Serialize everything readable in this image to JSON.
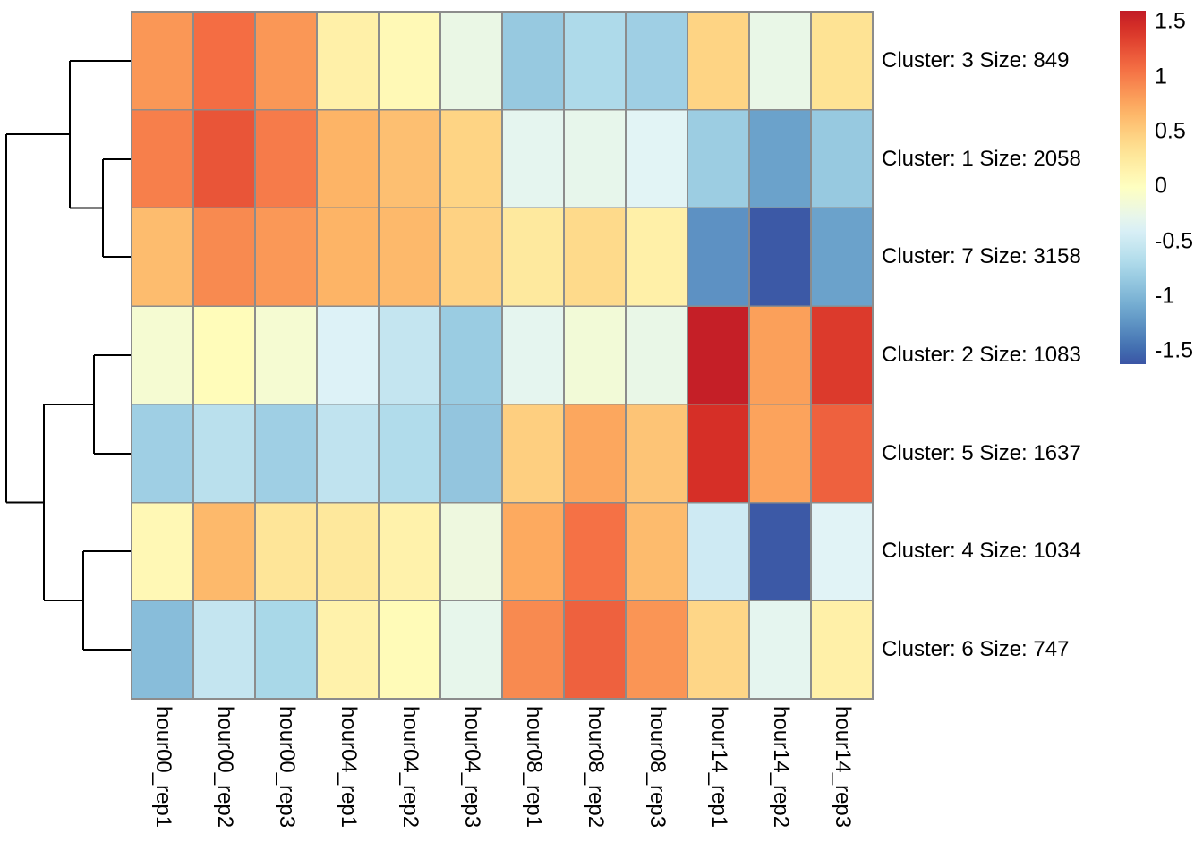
{
  "figure": {
    "background": "#ffffff",
    "grid_line_color": "#8C8C8C",
    "dendrogram_line_color": "#000000",
    "text_color": "#000000"
  },
  "chart_data": {
    "type": "heatmap",
    "title": "",
    "xlabel": "",
    "ylabel": "",
    "grid": true,
    "legend_position": "right",
    "columns": [
      "hour00_rep1",
      "hour00_rep2",
      "hour00_rep3",
      "hour04_rep1",
      "hour04_rep2",
      "hour04_rep3",
      "hour08_rep1",
      "hour08_rep2",
      "hour08_rep3",
      "hour14_rep1",
      "hour14_rep2",
      "hour14_rep3"
    ],
    "rows": [
      {
        "label": "Cluster: 3 Size: 849",
        "cluster": 3,
        "size": 849,
        "values": [
          0.85,
          1.08,
          0.85,
          0.18,
          0.07,
          -0.24,
          -0.85,
          -0.7,
          -0.8,
          0.45,
          -0.25,
          0.33
        ]
      },
      {
        "label": "Cluster: 1 Size: 2058",
        "cluster": 1,
        "size": 2058,
        "values": [
          0.98,
          1.22,
          1.0,
          0.68,
          0.6,
          0.45,
          -0.3,
          -0.28,
          -0.34,
          -0.82,
          -1.15,
          -0.85
        ]
      },
      {
        "label": "Cluster: 7 Size: 3158",
        "cluster": 7,
        "size": 3158,
        "values": [
          0.62,
          0.92,
          0.84,
          0.68,
          0.64,
          0.46,
          0.25,
          0.4,
          0.18,
          -1.26,
          -1.6,
          -1.15
        ]
      },
      {
        "label": "Cluster: 2 Size: 1083",
        "cluster": 2,
        "size": 1083,
        "values": [
          -0.12,
          0.04,
          -0.12,
          -0.38,
          -0.55,
          -0.83,
          -0.3,
          -0.15,
          -0.25,
          1.57,
          0.8,
          1.38
        ]
      },
      {
        "label": "Cluster: 5 Size: 1637",
        "cluster": 5,
        "size": 1637,
        "values": [
          -0.8,
          -0.62,
          -0.8,
          -0.58,
          -0.68,
          -0.88,
          0.48,
          0.76,
          0.56,
          1.45,
          0.78,
          1.15
        ]
      },
      {
        "label": "Cluster: 4 Size: 1034",
        "cluster": 4,
        "size": 1034,
        "values": [
          0.08,
          0.64,
          0.3,
          0.27,
          0.15,
          -0.2,
          0.74,
          1.06,
          0.63,
          -0.48,
          -1.6,
          -0.35
        ]
      },
      {
        "label": "Cluster: 6 Size: 747",
        "cluster": 6,
        "size": 747,
        "values": [
          -0.95,
          -0.55,
          -0.73,
          0.15,
          0.05,
          -0.28,
          0.92,
          1.15,
          0.86,
          0.43,
          -0.3,
          0.18
        ]
      }
    ],
    "colormap": {
      "name": "RdYlBu-reversed",
      "domain": [
        -1.8,
        1.8
      ],
      "colors": [
        "#313695",
        "#4575B4",
        "#74ADD1",
        "#ABD9E9",
        "#E0F3F8",
        "#FFFFBF",
        "#FEE090",
        "#FDAE61",
        "#F46D43",
        "#D73027",
        "#A50026"
      ]
    },
    "legend": {
      "ticks": [
        "1.5",
        "1",
        "0.5",
        "0",
        "-0.5",
        "-1",
        "-1.5"
      ],
      "tick_values": [
        1.5,
        1,
        0.5,
        0,
        -0.5,
        -1,
        -1.5
      ],
      "top_value": 1.6,
      "bottom_value": -1.62
    },
    "dendrogram": {
      "orientation": "left",
      "topology": "((3,(1,7)),((2,5),(4,6)))",
      "segments": [
        [
          7,
          150,
          78,
          150
        ],
        [
          78,
          68,
          78,
          232.5
        ],
        [
          78,
          68,
          147,
          68
        ],
        [
          78,
          232.5,
          115,
          232.5
        ],
        [
          115,
          178,
          115,
          287
        ],
        [
          115,
          178,
          147,
          178
        ],
        [
          115,
          287,
          147,
          287
        ],
        [
          7,
          150,
          7,
          561.5
        ],
        [
          7,
          561.5,
          49,
          561.5
        ],
        [
          49,
          452,
          49,
          671
        ],
        [
          49,
          452,
          105,
          452
        ],
        [
          105,
          397,
          105,
          507
        ],
        [
          105,
          397,
          147,
          397
        ],
        [
          105,
          507,
          147,
          507
        ],
        [
          49,
          671,
          93,
          671
        ],
        [
          93,
          616,
          93,
          726
        ],
        [
          93,
          616,
          147,
          616
        ],
        [
          93,
          726,
          147,
          726
        ]
      ]
    }
  }
}
